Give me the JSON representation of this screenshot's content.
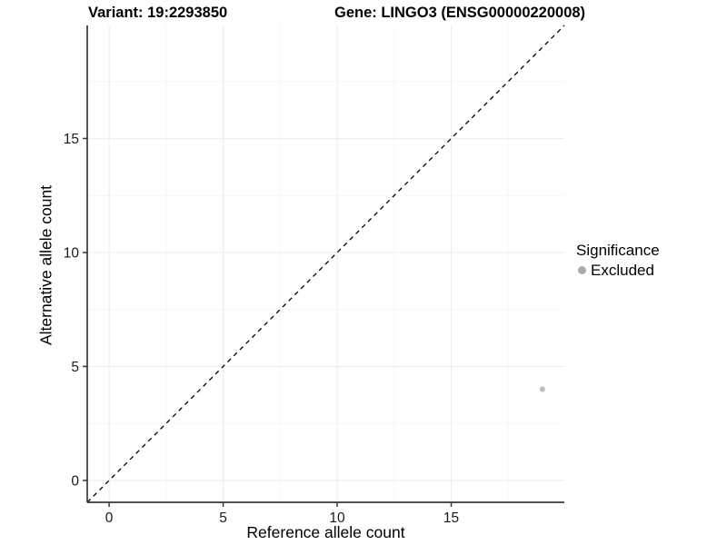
{
  "chart_data": {
    "type": "scatter",
    "title_variant": "Variant: 19:2293850",
    "title_gene": "Gene: LINGO3 (ENSG00000220008)",
    "xlabel": "Reference allele count",
    "ylabel": "Alternative allele count",
    "xlim": [
      -0.96,
      19.96
    ],
    "ylim": [
      -0.96,
      19.96
    ],
    "x_ticks": [
      0,
      5,
      10,
      15
    ],
    "y_ticks": [
      0,
      5,
      10,
      15
    ],
    "x_minor_ticks": [
      2.5,
      7.5,
      12.5,
      17.5
    ],
    "y_minor_ticks": [
      2.5,
      7.5,
      12.5,
      17.5
    ],
    "grid": true,
    "reference_line": {
      "style": "dashed",
      "slope": 1,
      "intercept": 0,
      "color": "#000000"
    },
    "points": [
      {
        "x": 19,
        "y": 4,
        "significance": "Excluded",
        "color": "#BEBEBE",
        "radius": 3
      }
    ],
    "legend": {
      "title": "Significance",
      "position": "right",
      "entries": [
        {
          "label": "Excluded",
          "key_color": "#ABABAB",
          "color": "#BEBEBE"
        }
      ]
    },
    "colors": {
      "background": "#FFFFFF",
      "grid_major": "#EDEDED",
      "grid_minor": "#F6F6F6",
      "axis": "#383838"
    }
  }
}
